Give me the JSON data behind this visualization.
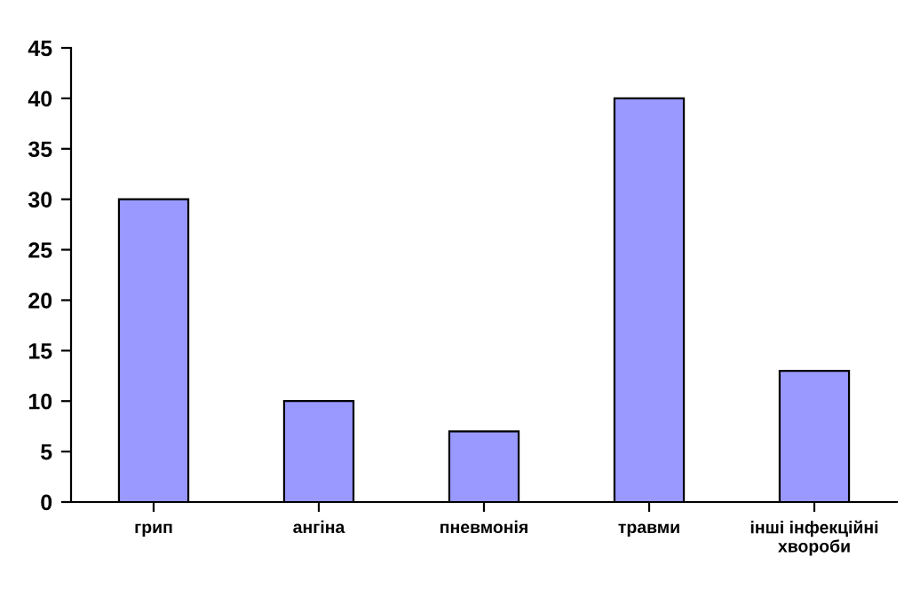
{
  "chart_data": {
    "type": "bar",
    "categories": [
      "грип",
      "ангіна",
      "пневмонія",
      "травми",
      "інші інфекційні\nхвороби"
    ],
    "values": [
      30,
      10,
      7,
      40,
      13
    ],
    "color": "#9999ff",
    "ylim": [
      0,
      45
    ],
    "yticks": [
      0,
      5,
      10,
      15,
      20,
      25,
      30,
      35,
      40,
      45
    ],
    "grid": false,
    "legend": false
  }
}
